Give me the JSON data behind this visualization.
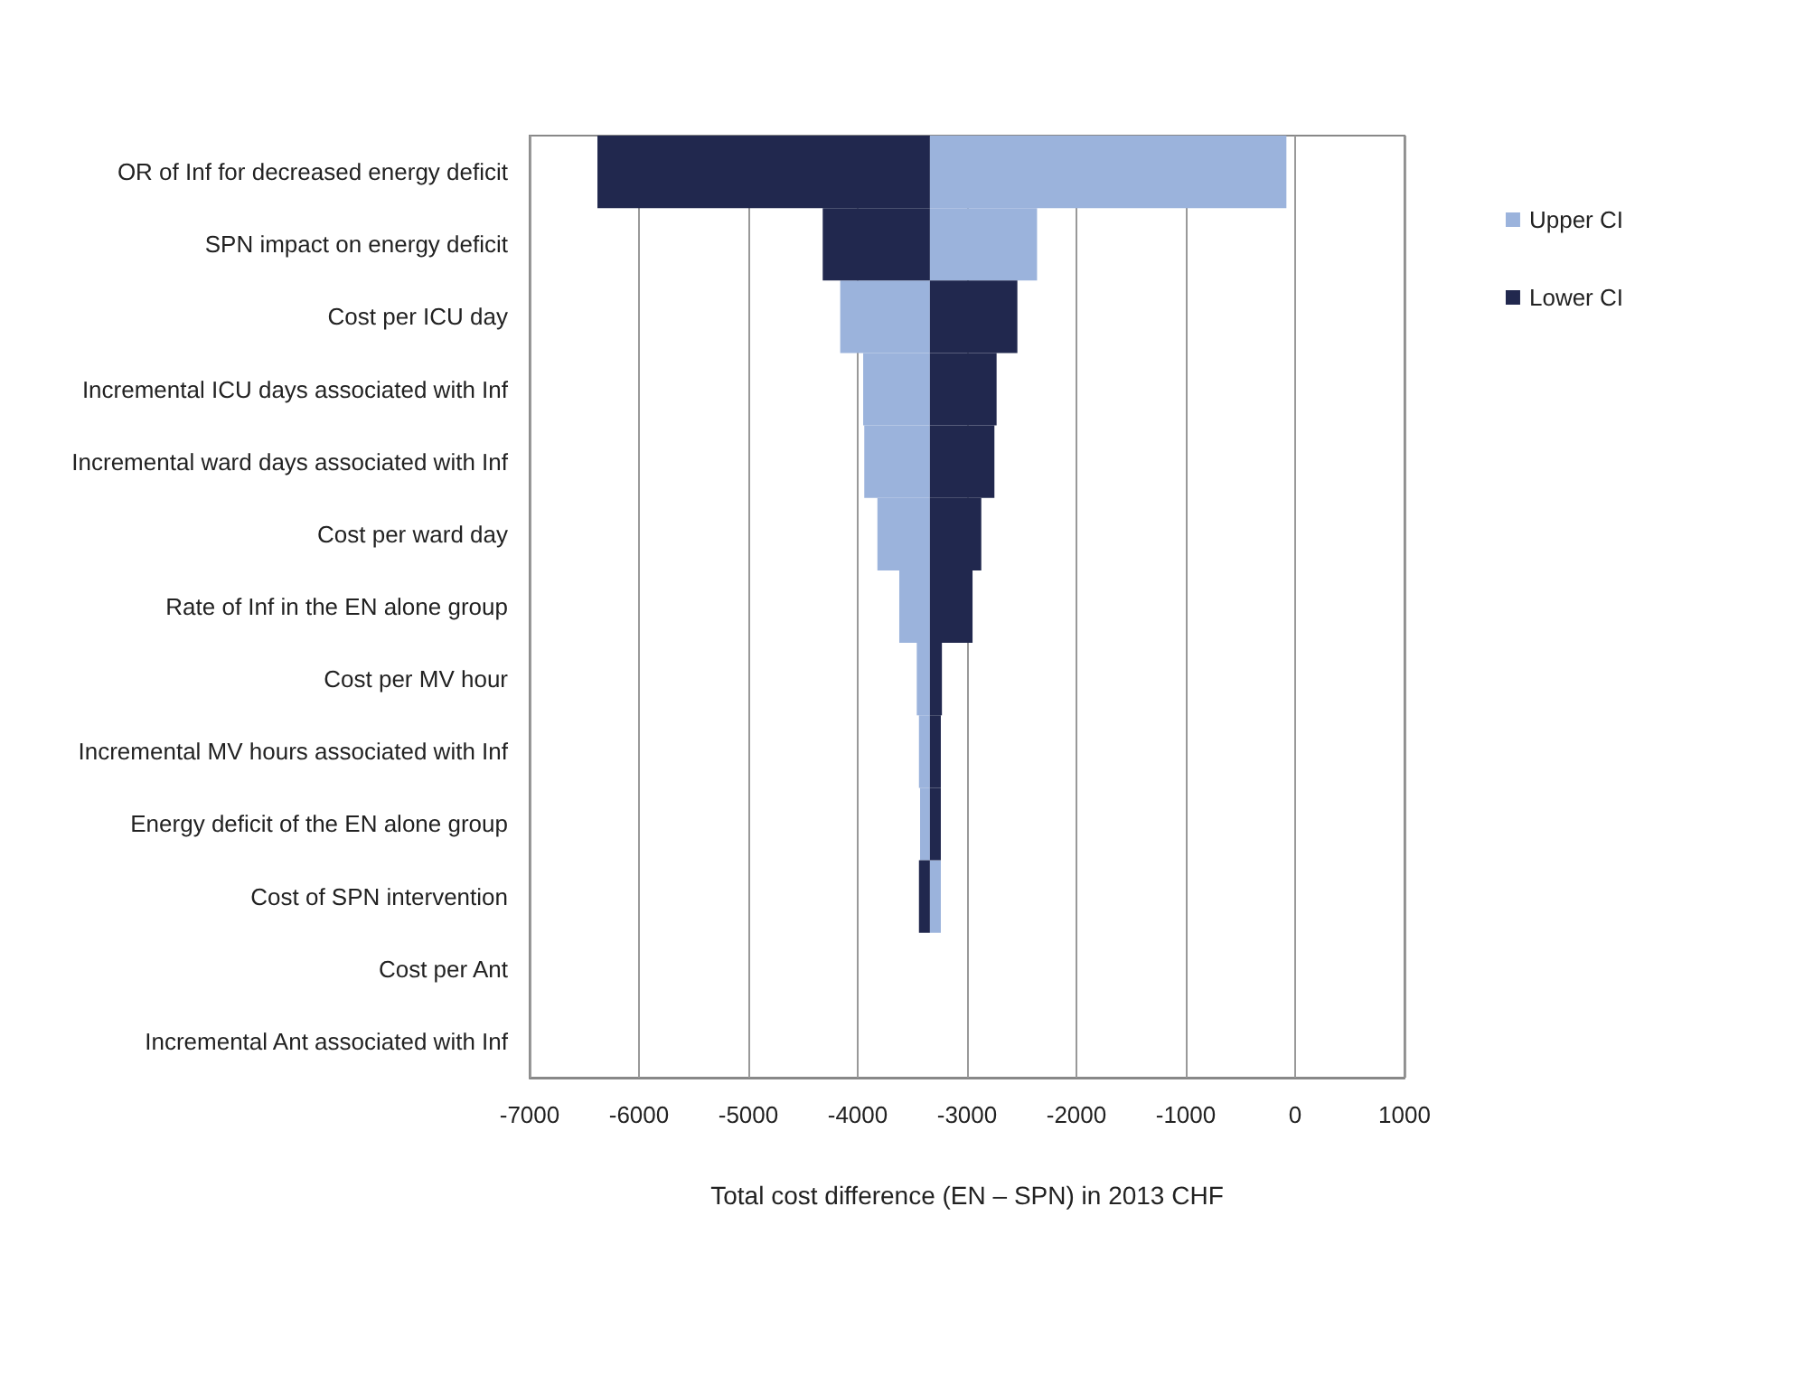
{
  "chart_data": {
    "type": "bar",
    "orientation": "horizontal",
    "xlabel": "Total cost difference (EN – SPN) in 2013 CHF",
    "categories": [
      "OR of Inf for decreased energy deficit",
      "SPN impact on energy deficit",
      "Cost per ICU day",
      "Incremental ICU days associated with Inf",
      "Incremental ward days associated with Inf",
      "Cost per ward day",
      "Rate of Inf in the EN alone group",
      "Cost per MV hour",
      "Incremental MV hours associated with Inf",
      "Energy deficit of the EN alone group",
      "Cost of SPN intervention",
      "Cost per Ant",
      "Incremental Ant associated with Inf"
    ],
    "series": [
      {
        "name": "Upper CI",
        "color": "#9bb3dc",
        "base": [
          -3340,
          -3340,
          -3340,
          -3340,
          -3340,
          -3340,
          -3340,
          -3340,
          -3340,
          -3340,
          -3340,
          null,
          null
        ],
        "values": [
          3260,
          980,
          -820,
          -610,
          -600,
          -480,
          -280,
          -120,
          -100,
          -90,
          100,
          null,
          null
        ]
      },
      {
        "name": "Lower CI",
        "color": "#21284e",
        "base": [
          -3340,
          -3340,
          -3340,
          -3340,
          -3340,
          -3340,
          -3340,
          -3340,
          -3340,
          -3340,
          -3340,
          null,
          null
        ],
        "values": [
          -3040,
          -980,
          800,
          610,
          590,
          470,
          390,
          110,
          100,
          100,
          -100,
          null,
          null
        ]
      }
    ],
    "xlim": [
      -7000,
      1000
    ],
    "xticks": [
      -7000,
      -6000,
      -5000,
      -4000,
      -3000,
      -2000,
      -1000,
      0,
      1000
    ],
    "grid": "x",
    "legend": "right"
  }
}
